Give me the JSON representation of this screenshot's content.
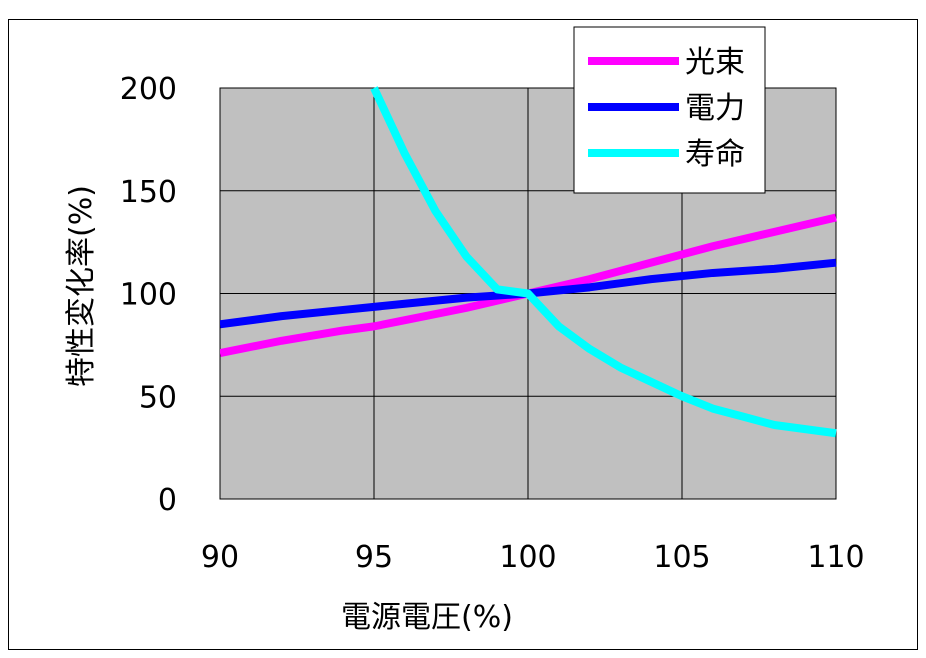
{
  "chart_data": {
    "type": "line",
    "xlabel": "電源電圧(%)",
    "ylabel": "特性変化率(%)",
    "xlim": [
      90,
      110
    ],
    "ylim": [
      0,
      200
    ],
    "x_ticks": [
      "90",
      "95",
      "100",
      "105",
      "110"
    ],
    "y_ticks": [
      "0",
      "50",
      "100",
      "150",
      "200"
    ],
    "grid": true,
    "legend_position": "top-right",
    "plot_background": "#c0c0c0",
    "series": [
      {
        "name": "光束",
        "color": "#ff00ff",
        "x": [
          90,
          92,
          94,
          95,
          96,
          98,
          100,
          102,
          104,
          106,
          108,
          110
        ],
        "y": [
          71,
          77,
          82,
          84,
          87,
          93,
          100,
          107,
          115,
          123,
          130,
          137
        ]
      },
      {
        "name": "電力",
        "color": "#0000ff",
        "x": [
          90,
          92,
          94,
          96,
          98,
          100,
          102,
          104,
          106,
          108,
          110
        ],
        "y": [
          85,
          89,
          92,
          95,
          98,
          100,
          103,
          107,
          110,
          112,
          115
        ]
      },
      {
        "name": "寿命",
        "color": "#00ffff",
        "x": [
          95,
          96,
          97,
          98,
          99,
          100,
          101,
          102,
          103,
          104,
          105,
          106,
          107,
          108,
          109,
          110
        ],
        "y": [
          200,
          168,
          140,
          118,
          102,
          100,
          84,
          73,
          64,
          57,
          50,
          44,
          40,
          36,
          34,
          32
        ]
      }
    ]
  }
}
